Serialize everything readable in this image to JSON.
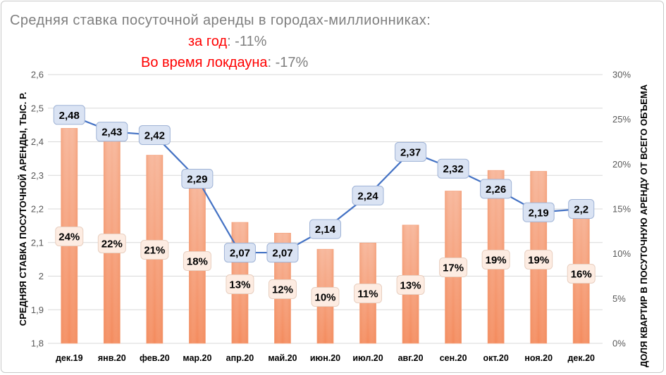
{
  "header": {
    "title": "Средняя ставка посуточной аренды в городах-миллионниках:",
    "line1_label": "за год",
    "line1_value": ": -11%",
    "line2_label": "Во время локдауна",
    "line2_value": ":  -17%"
  },
  "chart_data": {
    "type": "bar+line",
    "categories": [
      "дек.19",
      "янв.20",
      "фев.20",
      "мар.20",
      "апр.20",
      "май.20",
      "июн.20",
      "июл.20",
      "авг.20",
      "сен.20",
      "окт.20",
      "ноя.20",
      "дек.20"
    ],
    "series": [
      {
        "type": "line",
        "axis": "left",
        "values": [
          2.48,
          2.43,
          2.42,
          2.29,
          2.07,
          2.07,
          2.14,
          2.24,
          2.37,
          2.32,
          2.26,
          2.19,
          2.2
        ],
        "labels": [
          "2,48",
          "2,43",
          "2,42",
          "2,29",
          "2,07",
          "2,07",
          "2,14",
          "2,24",
          "2,37",
          "2,32",
          "2,26",
          "2,19",
          "2,2"
        ],
        "color": "#4472c4"
      },
      {
        "type": "bar",
        "axis": "right",
        "values": [
          24,
          22,
          21,
          18,
          13,
          12,
          10,
          11,
          13,
          17,
          19,
          19,
          16
        ],
        "bar_values_estimated": [
          24,
          23,
          21,
          18,
          13.5,
          12.3,
          10.5,
          11.2,
          13.2,
          17,
          19.3,
          19.2,
          16
        ],
        "labels": [
          "24%",
          "22%",
          "21%",
          "18%",
          "13%",
          "12%",
          "10%",
          "11%",
          "13%",
          "17%",
          "19%",
          "19%",
          "16%"
        ],
        "color": "#f4a582"
      }
    ],
    "yleft": {
      "label": "СРЕДНЯЯ СТАВКА  ПОСУТОЧНОЙ АРЕНДЫ, ТЫС. Р.",
      "ticks": [
        "1,8",
        "1,9",
        "2",
        "2,1",
        "2,2",
        "2,3",
        "2,4",
        "2,5",
        "2,6"
      ],
      "range": [
        1.8,
        2.6
      ]
    },
    "yright": {
      "label": "ДОЛЯ КВАРТИР В ПОСУТОЧНУЮ АРЕНДУ  ОТ ВСЕГО ОБЪЕМА",
      "ticks": [
        "0%",
        "5%",
        "10%",
        "15%",
        "20%",
        "25%",
        "30%"
      ],
      "range": [
        0,
        30
      ]
    },
    "grid": true
  }
}
